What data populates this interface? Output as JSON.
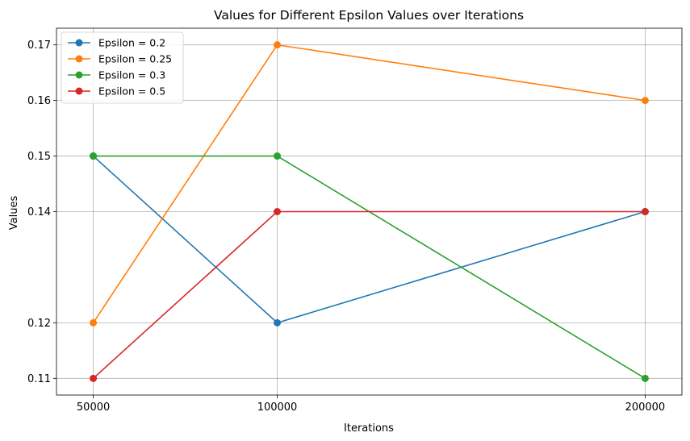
{
  "chart_data": {
    "type": "line",
    "title": "Values for Different Epsilon Values over Iterations",
    "xlabel": "Iterations",
    "ylabel": "Values",
    "x": [
      50000,
      100000,
      200000
    ],
    "x_tick_labels": [
      "50000",
      "100000",
      "200000"
    ],
    "y_ticks": [
      0.11,
      0.12,
      0.14,
      0.15,
      0.16,
      0.17
    ],
    "y_tick_labels": [
      "0.11",
      "0.12",
      "0.14",
      "0.15",
      "0.16",
      "0.17"
    ],
    "xlim": [
      40000,
      210000
    ],
    "ylim": [
      0.107,
      0.173
    ],
    "grid": true,
    "legend_position": "top-left",
    "marker": "circle",
    "series": [
      {
        "name": "Epsilon = 0.2",
        "color": "#1f77b4",
        "values": [
          0.15,
          0.12,
          0.14
        ]
      },
      {
        "name": "Epsilon = 0.25",
        "color": "#ff7f0e",
        "values": [
          0.12,
          0.17,
          0.16
        ]
      },
      {
        "name": "Epsilon = 0.3",
        "color": "#2ca02c",
        "values": [
          0.15,
          0.15,
          0.11
        ]
      },
      {
        "name": "Epsilon = 0.5",
        "color": "#d62728",
        "values": [
          0.11,
          0.14,
          0.14
        ]
      }
    ]
  }
}
